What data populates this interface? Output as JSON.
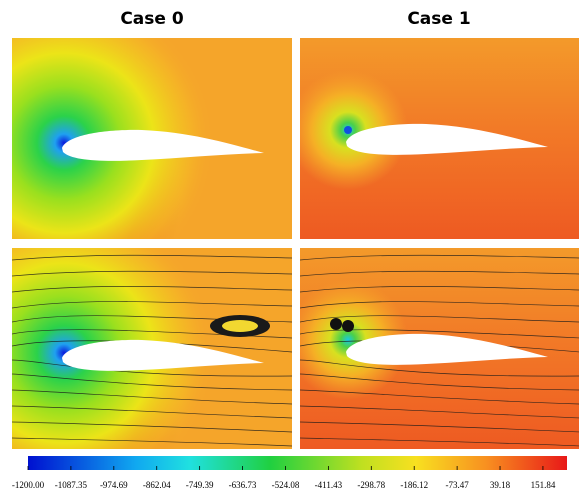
{
  "columns": [
    {
      "title": "Case 0"
    },
    {
      "title": "Case 1"
    }
  ],
  "colorbar": {
    "lim": [
      -1200,
      215
    ],
    "ticks": [
      {
        "value": -1200,
        "label": "-1200.00"
      },
      {
        "value": -1087.35,
        "label": "-1087.35"
      },
      {
        "value": -974.69,
        "label": "-974.69"
      },
      {
        "value": -862.04,
        "label": "-862.04"
      },
      {
        "value": -749.39,
        "label": "-749.39"
      },
      {
        "value": -636.73,
        "label": "-636.73"
      },
      {
        "value": -524.08,
        "label": "-524.08"
      },
      {
        "value": -411.43,
        "label": "-411.43"
      },
      {
        "value": -298.78,
        "label": "-298.78"
      },
      {
        "value": -186.12,
        "label": "-186.12"
      },
      {
        "value": -73.47,
        "label": "-73.47"
      },
      {
        "value": 39.18,
        "label": "39.18"
      },
      {
        "value": 151.84,
        "label": "151.84"
      }
    ]
  }
}
